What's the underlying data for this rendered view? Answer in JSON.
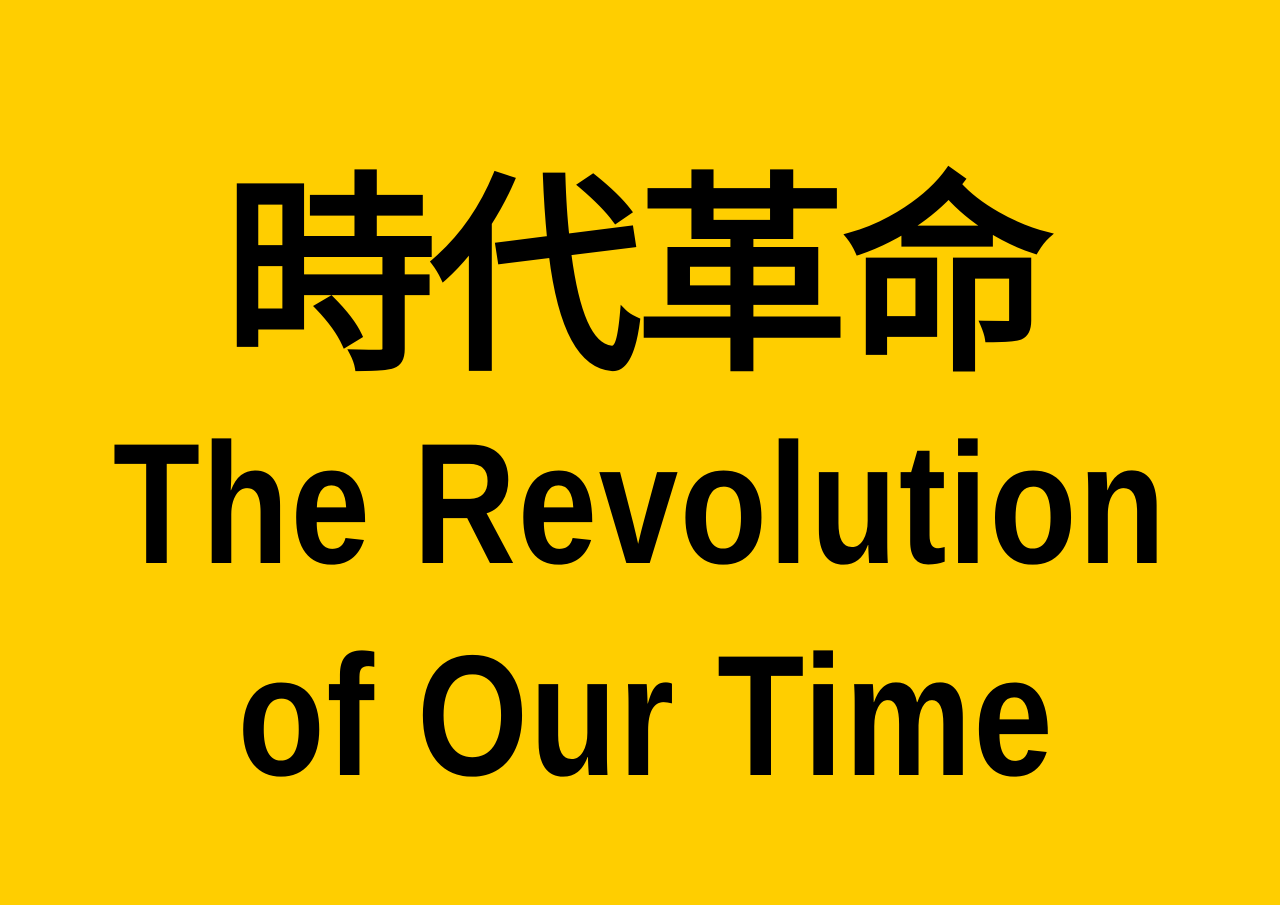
{
  "poster": {
    "background_color": "#FFCE00",
    "text_color": "#000000",
    "chinese_title": "時代革命",
    "english_line_1": "The Revolution",
    "english_line_2": "of Our Time"
  }
}
